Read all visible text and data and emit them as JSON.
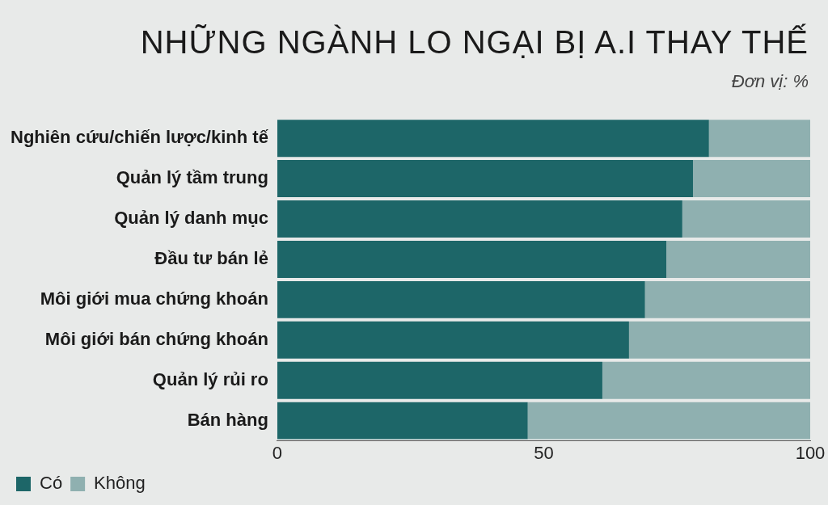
{
  "chart_data": {
    "type": "bar",
    "title": "NHỮNG NGÀNH LO NGẠI BỊ A.I THAY THẾ",
    "subtitle": "Đơn vị: %",
    "categories": [
      "Nghiên cứu/chiến lược/kinh tế",
      "Quản lý tầm trung",
      "Quản lý danh mục",
      "Đầu tư bán lẻ",
      "Môi giới mua chứng khoán",
      "Môi giới bán chứng khoán",
      "Quản lý rủi ro",
      "Bán hàng"
    ],
    "orientation": "horizontal",
    "stacked": true,
    "series": [
      {
        "name": "Có",
        "color": "#1d6668",
        "values": [
          81,
          78,
          76,
          73,
          69,
          66,
          61,
          47
        ]
      },
      {
        "name": "Không",
        "color": "#8fb0b0",
        "values": [
          19,
          22,
          24,
          27,
          31,
          34,
          39,
          53
        ]
      }
    ],
    "xlim": [
      0,
      100
    ],
    "xticks": [
      0,
      50,
      100
    ],
    "grid": false,
    "legend": "bottom left"
  }
}
